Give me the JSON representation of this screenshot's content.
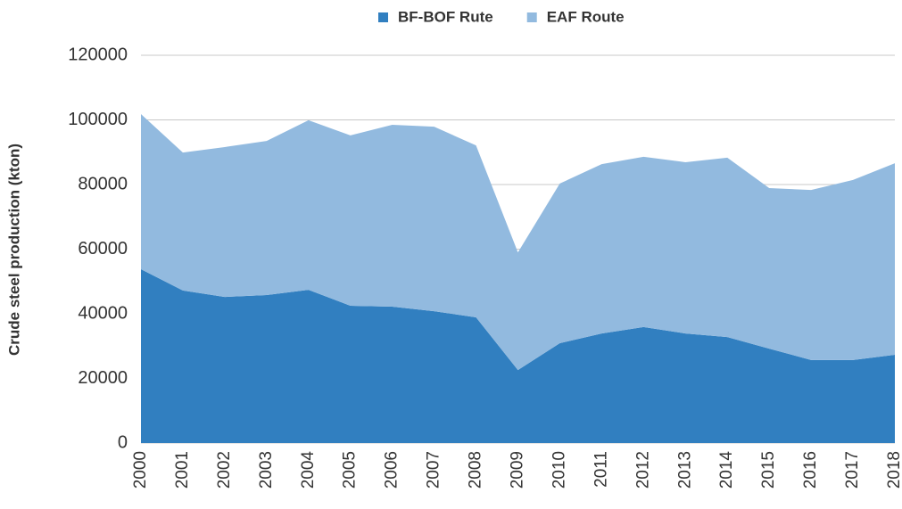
{
  "chart_data": {
    "type": "area",
    "stacked": true,
    "y_label": "Crude steel production (kton)",
    "categories": [
      "2000",
      "2001",
      "2002",
      "2003",
      "2004",
      "2005",
      "2006",
      "2007",
      "2008",
      "2009",
      "2010",
      "2011",
      "2012",
      "2013",
      "2014",
      "2015",
      "2016",
      "2017",
      "2018"
    ],
    "series": [
      {
        "name": "BF-BOF Rute",
        "color": "#317fc0",
        "values": [
          53800,
          47200,
          45200,
          45800,
          47400,
          42500,
          42200,
          40800,
          38900,
          22600,
          30900,
          33900,
          35900,
          33900,
          32800,
          29200,
          25700,
          25700,
          27300
        ]
      },
      {
        "name": "EAF Route",
        "color": "#92badf",
        "values": [
          48000,
          42700,
          46400,
          47700,
          52500,
          52700,
          56300,
          57100,
          53200,
          36400,
          49400,
          52400,
          52700,
          53000,
          55500,
          49700,
          52600,
          55700,
          59300
        ]
      }
    ],
    "ylim": [
      0,
      120000
    ],
    "yticks": [
      0,
      20000,
      40000,
      60000,
      80000,
      100000,
      120000
    ],
    "grid": true,
    "legend": "top"
  }
}
